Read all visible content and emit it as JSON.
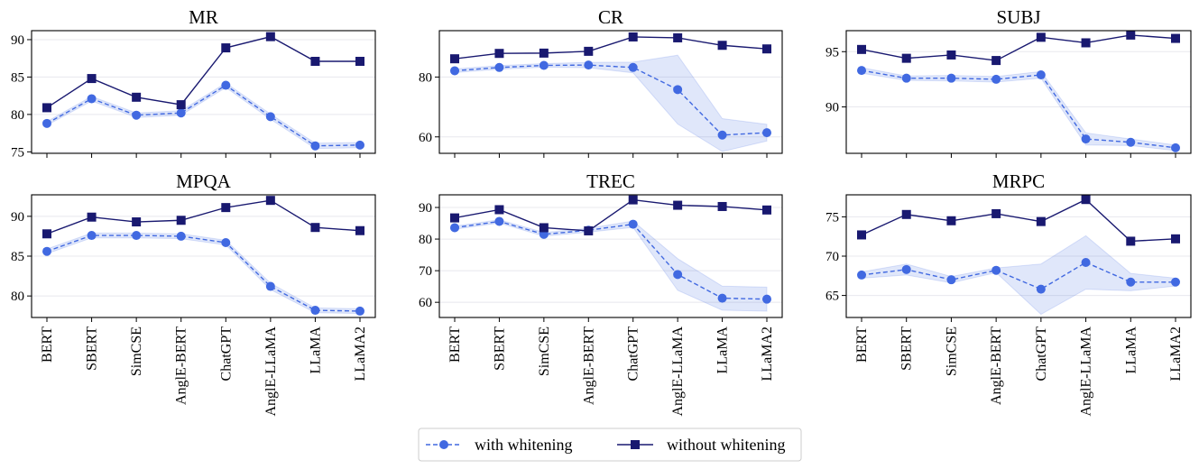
{
  "colors": {
    "with_whitening": "#4169e1",
    "without_whitening": "#191970",
    "band_fill": "#4169e1"
  },
  "legend": {
    "with_label": "with whitening",
    "without_label": "without whitening",
    "placement": "bottom-center"
  },
  "chart_data": [
    {
      "type": "line",
      "title": "MR",
      "categories": [
        "BERT",
        "SBERT",
        "SimCSE",
        "AnglE-BERT",
        "ChatGPT",
        "AnglE-LLaMA",
        "LLaMA",
        "LLaMA2"
      ],
      "ylim": [
        74.8,
        91.2
      ],
      "yticks": [
        75,
        80,
        85,
        90
      ],
      "grid": true,
      "show_xlabels": false,
      "series": [
        {
          "name": "with whitening",
          "values": [
            78.8,
            82.1,
            79.9,
            80.2,
            83.9,
            79.7,
            75.8,
            75.9
          ],
          "band": [
            0.25,
            0.3,
            0.3,
            0.3,
            0.3,
            0.35,
            0.35,
            0.35
          ]
        },
        {
          "name": "without whitening",
          "values": [
            80.9,
            84.8,
            82.3,
            81.3,
            88.9,
            90.4,
            87.1,
            87.1
          ]
        }
      ]
    },
    {
      "type": "line",
      "title": "CR",
      "categories": [
        "BERT",
        "SBERT",
        "SimCSE",
        "AnglE-BERT",
        "ChatGPT",
        "AnglE-LLaMA",
        "LLaMA",
        "LLaMA2"
      ],
      "ylim": [
        54.5,
        95.5
      ],
      "yticks": [
        60,
        80
      ],
      "grid": true,
      "show_xlabels": false,
      "series": [
        {
          "name": "with whitening",
          "values": [
            82.1,
            83.2,
            83.9,
            84.0,
            83.2,
            75.8,
            60.6,
            61.4
          ],
          "band": [
            0.6,
            0.6,
            0.6,
            0.9,
            1.8,
            11.5,
            5.5,
            2.8
          ]
        },
        {
          "name": "without whitening",
          "values": [
            86.1,
            87.9,
            88.0,
            88.6,
            93.4,
            93.1,
            90.6,
            89.4
          ]
        }
      ]
    },
    {
      "type": "line",
      "title": "SUBJ",
      "categories": [
        "BERT",
        "SBERT",
        "SimCSE",
        "AnglE-BERT",
        "ChatGPT",
        "AnglE-LLaMA",
        "LLaMA",
        "LLaMA2"
      ],
      "ylim": [
        85.8,
        96.9
      ],
      "yticks": [
        90,
        95
      ],
      "grid": true,
      "show_xlabels": false,
      "series": [
        {
          "name": "with whitening",
          "values": [
            93.3,
            92.6,
            92.6,
            92.5,
            92.9,
            87.1,
            86.8,
            86.3
          ],
          "band": [
            0.25,
            0.2,
            0.25,
            0.25,
            0.3,
            0.55,
            0.3,
            0.25
          ]
        },
        {
          "name": "without whitening",
          "values": [
            95.2,
            94.4,
            94.7,
            94.2,
            96.3,
            95.8,
            96.5,
            96.2
          ]
        }
      ]
    },
    {
      "type": "line",
      "title": "MPQA",
      "categories": [
        "BERT",
        "SBERT",
        "SimCSE",
        "AnglE-BERT",
        "ChatGPT",
        "AnglE-LLaMA",
        "LLaMA",
        "LLaMA2"
      ],
      "ylim": [
        77.3,
        92.7
      ],
      "yticks": [
        80,
        85,
        90
      ],
      "grid": true,
      "show_xlabels": true,
      "series": [
        {
          "name": "with whitening",
          "values": [
            85.6,
            87.6,
            87.6,
            87.5,
            86.7,
            81.2,
            78.2,
            78.1
          ],
          "band": [
            0.3,
            0.3,
            0.3,
            0.3,
            0.3,
            0.4,
            0.3,
            0.3
          ]
        },
        {
          "name": "without whitening",
          "values": [
            87.8,
            89.9,
            89.3,
            89.5,
            91.1,
            92.0,
            88.6,
            88.2
          ]
        }
      ]
    },
    {
      "type": "line",
      "title": "TREC",
      "categories": [
        "BERT",
        "SBERT",
        "SimCSE",
        "AnglE-BERT",
        "ChatGPT",
        "AnglE-LLaMA",
        "LLaMA",
        "LLaMA2"
      ],
      "ylim": [
        55.2,
        94.0
      ],
      "yticks": [
        60,
        70,
        80,
        90
      ],
      "grid": true,
      "show_xlabels": true,
      "series": [
        {
          "name": "with whitening",
          "values": [
            83.6,
            85.6,
            81.5,
            82.8,
            84.7,
            68.8,
            61.3,
            61.0
          ],
          "band": [
            0.5,
            0.5,
            0.6,
            0.6,
            1.0,
            5.0,
            3.8,
            3.8
          ]
        },
        {
          "name": "without whitening",
          "values": [
            86.7,
            89.3,
            83.6,
            82.6,
            92.4,
            90.7,
            90.3,
            89.2
          ]
        }
      ]
    },
    {
      "type": "line",
      "title": "MRPC",
      "categories": [
        "BERT",
        "SBERT",
        "SimCSE",
        "AnglE-BERT",
        "ChatGPT",
        "AnglE-LLaMA",
        "LLaMA",
        "LLaMA2"
      ],
      "ylim": [
        62.2,
        77.8
      ],
      "yticks": [
        65,
        70,
        75
      ],
      "grid": true,
      "show_xlabels": true,
      "series": [
        {
          "name": "with whitening",
          "values": [
            67.6,
            68.3,
            67.0,
            68.2,
            65.8,
            69.2,
            66.7,
            66.7
          ],
          "band": [
            0.4,
            0.7,
            0.4,
            0.3,
            3.2,
            3.4,
            1.1,
            0.5
          ]
        },
        {
          "name": "without whitening",
          "values": [
            72.7,
            75.3,
            74.5,
            75.4,
            74.4,
            77.2,
            71.9,
            72.2
          ]
        }
      ]
    }
  ]
}
